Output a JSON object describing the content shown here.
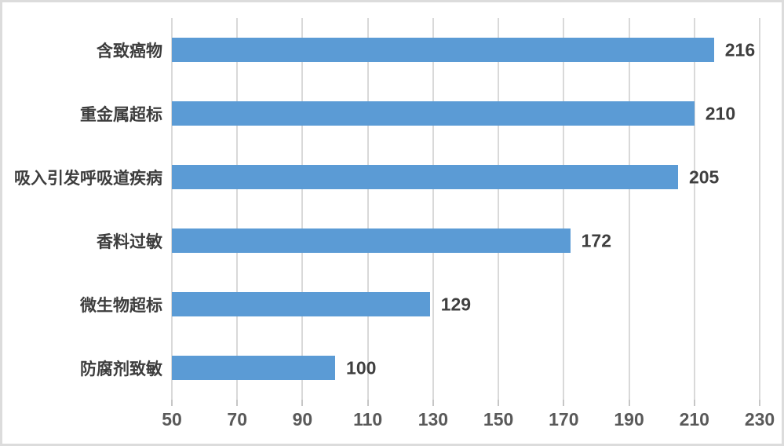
{
  "chart_data": {
    "type": "bar",
    "orientation": "horizontal",
    "title": "",
    "xlabel": "",
    "ylabel": "",
    "categories": [
      "含致癌物",
      "重金属超标",
      "吸入引发呼吸道疾病",
      "香料过敏",
      "微生物超标",
      "防腐剂致敏"
    ],
    "values": [
      216,
      210,
      205,
      172,
      129,
      100
    ],
    "value_labels": [
      "216",
      "210",
      "205",
      "172",
      "129",
      "100"
    ],
    "xlim": [
      50,
      230
    ],
    "xticks": [
      50,
      70,
      90,
      110,
      130,
      150,
      170,
      190,
      210,
      230
    ],
    "xtick_labels": [
      "50",
      "70",
      "90",
      "110",
      "130",
      "150",
      "170",
      "190",
      "210",
      "230"
    ],
    "grid": true,
    "legend": "none",
    "bar_color": "#5b9bd5",
    "gridline_color": "#d9d9d9",
    "tick_label_color": "#595959",
    "category_label_color": "#3d3d3d",
    "value_label_color": "#3f3f3f"
  }
}
